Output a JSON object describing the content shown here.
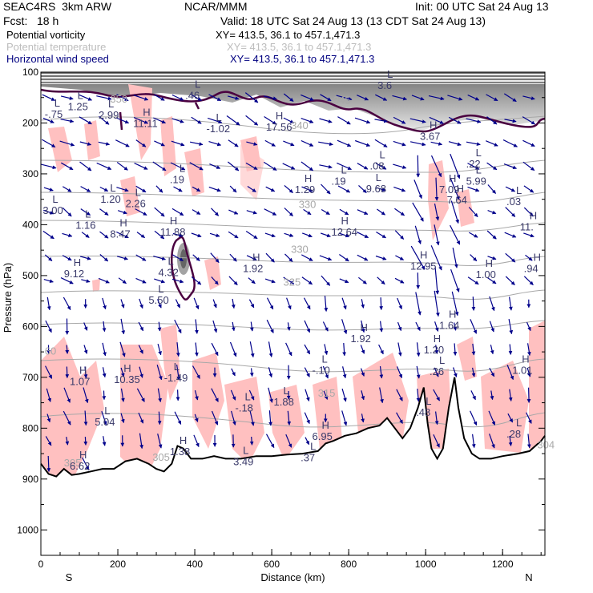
{
  "header": {
    "model": "SEAC4RS  3km ARW",
    "org": "NCAR/MMM",
    "init": "Init: 00 UTC Sat 24 Aug 13",
    "fcst": "Fcst:   18 h",
    "valid": "Valid: 18 UTC Sat 24 Aug 13 (13 CDT Sat 24 Aug 13)"
  },
  "legend": [
    {
      "label": "Potential vorticity",
      "xy": "XY= 413.5, 36.1 to 457.1,471.3",
      "color": "#000000",
      "xycolor": "#000000"
    },
    {
      "label": "Potential temperature",
      "xy": "XY= 413.5, 36.1 to 457.1,471.3",
      "color": "#bdbdbd",
      "xycolor": "#bdbdbd"
    },
    {
      "label": "Horizontal wind speed",
      "xy": "XY= 413.5, 36.1 to 457.1,471.3",
      "color": "#000080",
      "xycolor": "#000080"
    }
  ],
  "colors": {
    "pv_shade": "#ffc0c0",
    "pv_contour": "#4a0040",
    "theta": "#a8a8a8",
    "wind": "#00008b",
    "terrain": "#000000",
    "label": "#3a3a6a"
  },
  "chart_data": {
    "type": "heatmap",
    "xlabel": "Distance (km)",
    "ylabel": "Pressure (hPa)",
    "xlim": [
      0,
      1310
    ],
    "ylim": [
      1050,
      100
    ],
    "x_ticks": [
      0,
      200,
      400,
      600,
      800,
      1000,
      1200
    ],
    "x_tick_labels": [
      "0",
      "200",
      "400",
      "600",
      "800",
      "1000",
      "1200"
    ],
    "y_ticks": [
      100,
      200,
      300,
      400,
      500,
      600,
      700,
      800,
      900,
      1000
    ],
    "y_tick_labels": [
      "100",
      "200",
      "300",
      "400",
      "500",
      "600",
      "700",
      "800",
      "900",
      "1000"
    ],
    "direction_labels": {
      "left": "S",
      "right": "N"
    },
    "theta_labels": [
      {
        "x": 760,
        "p": 162,
        "text": "345"
      },
      {
        "x": 650,
        "p": 212,
        "text": "340"
      },
      {
        "x": 670,
        "p": 367,
        "text": "330"
      },
      {
        "x": 650,
        "p": 455,
        "text": "330"
      },
      {
        "x": 630,
        "p": 520,
        "text": "325"
      },
      {
        "x": 10,
        "p": 655,
        "text": "60"
      },
      {
        "x": 720,
        "p": 738,
        "text": "315"
      },
      {
        "x": 60,
        "p": 875,
        "text": "305"
      },
      {
        "x": 290,
        "p": 864,
        "text": "305"
      },
      {
        "x": 1290,
        "p": 840,
        "text": "304"
      },
      {
        "x": 180,
        "p": 160,
        "text": "350"
      }
    ],
    "extrema": [
      {
        "x": 35,
        "p": 187,
        "type": "L",
        "value": "-.75"
      },
      {
        "x": 95,
        "p": 172,
        "type": "L",
        "value": "1.25"
      },
      {
        "x": 175,
        "p": 188,
        "type": "L",
        "value": "2.99"
      },
      {
        "x": 265,
        "p": 205,
        "type": "H",
        "value": "11.11"
      },
      {
        "x": 455,
        "p": 215,
        "type": "L",
        "value": "-1.02"
      },
      {
        "x": 610,
        "p": 212,
        "type": "H",
        "value": "17.56"
      },
      {
        "x": 1010,
        "p": 230,
        "type": "H",
        "value": "3.67"
      },
      {
        "x": 360,
        "p": 315,
        "type": "L",
        "value": ".19"
      },
      {
        "x": 685,
        "p": 335,
        "type": "H",
        "value": "1.29"
      },
      {
        "x": 780,
        "p": 318,
        "type": "L",
        "value": ".19"
      },
      {
        "x": 880,
        "p": 288,
        "type": "L",
        "value": ".08"
      },
      {
        "x": 870,
        "p": 333,
        "type": "L",
        "value": "9.68"
      },
      {
        "x": 1130,
        "p": 284,
        "type": "L",
        "value": ".22"
      },
      {
        "x": 1130,
        "p": 318,
        "type": "L",
        "value": "5.99"
      },
      {
        "x": 1060,
        "p": 335,
        "type": "H",
        "value": "7.09"
      },
      {
        "x": 1080,
        "p": 355,
        "type": "H",
        "value": "7.64"
      },
      {
        "x": 180,
        "p": 354,
        "type": "L",
        "value": "1.20"
      },
      {
        "x": 245,
        "p": 362,
        "type": "L",
        "value": "2.26"
      },
      {
        "x": 30,
        "p": 376,
        "type": "L",
        "value": "3.00"
      },
      {
        "x": 115,
        "p": 405,
        "type": "L",
        "value": "1.16"
      },
      {
        "x": 205,
        "p": 422,
        "type": "H",
        "value": "8.47"
      },
      {
        "x": 335,
        "p": 418,
        "type": "H",
        "value": "11.88"
      },
      {
        "x": 780,
        "p": 418,
        "type": "H",
        "value": "12.64"
      },
      {
        "x": 1270,
        "p": 408,
        "type": "H",
        "value": "11."
      },
      {
        "x": 1235,
        "p": 358,
        "type": "L",
        "value": ".03"
      },
      {
        "x": 85,
        "p": 500,
        "type": "H",
        "value": "9.12"
      },
      {
        "x": 330,
        "p": 498,
        "type": "L",
        "value": "4.32"
      },
      {
        "x": 550,
        "p": 490,
        "type": "H",
        "value": "1.92"
      },
      {
        "x": 985,
        "p": 485,
        "type": "H",
        "value": "12.95"
      },
      {
        "x": 1155,
        "p": 502,
        "type": "H",
        "value": "1.00"
      },
      {
        "x": 1280,
        "p": 490,
        "type": "H",
        "value": ".94"
      },
      {
        "x": 305,
        "p": 552,
        "type": "L",
        "value": "5.50"
      },
      {
        "x": 830,
        "p": 628,
        "type": "H",
        "value": "1.92"
      },
      {
        "x": 1060,
        "p": 602,
        "type": "H",
        "value": "1.64"
      },
      {
        "x": 1020,
        "p": 650,
        "type": "H",
        "value": "1.20"
      },
      {
        "x": 1035,
        "p": 692,
        "type": "L",
        "value": ".26"
      },
      {
        "x": 730,
        "p": 690,
        "type": "L",
        "value": "-.10"
      },
      {
        "x": 100,
        "p": 712,
        "type": "H",
        "value": "1.07"
      },
      {
        "x": 215,
        "p": 708,
        "type": "H",
        "value": "10.35"
      },
      {
        "x": 345,
        "p": 705,
        "type": "L",
        "value": "-1.49"
      },
      {
        "x": 1250,
        "p": 690,
        "type": "H",
        "value": "1.01"
      },
      {
        "x": 165,
        "p": 792,
        "type": "L",
        "value": "5.04"
      },
      {
        "x": 530,
        "p": 764,
        "type": "L",
        "value": "-.18"
      },
      {
        "x": 630,
        "p": 752,
        "type": "L",
        "value": "1.88"
      },
      {
        "x": 1000,
        "p": 773,
        "type": "L",
        "value": ".48"
      },
      {
        "x": 730,
        "p": 820,
        "type": "H",
        "value": "6.95"
      },
      {
        "x": 1235,
        "p": 815,
        "type": "L",
        "value": ".28"
      },
      {
        "x": 360,
        "p": 850,
        "type": "H",
        "value": "1.38"
      },
      {
        "x": 100,
        "p": 878,
        "type": "H",
        "value": "6.62"
      },
      {
        "x": 525,
        "p": 870,
        "type": "L",
        "value": "3.49"
      },
      {
        "x": 700,
        "p": 862,
        "type": "L",
        "value": ".37"
      },
      {
        "x": 400,
        "p": 150,
        "type": "L",
        "value": ".46"
      },
      {
        "x": 900,
        "p": 130,
        "type": "L",
        "value": "3.6"
      }
    ]
  }
}
